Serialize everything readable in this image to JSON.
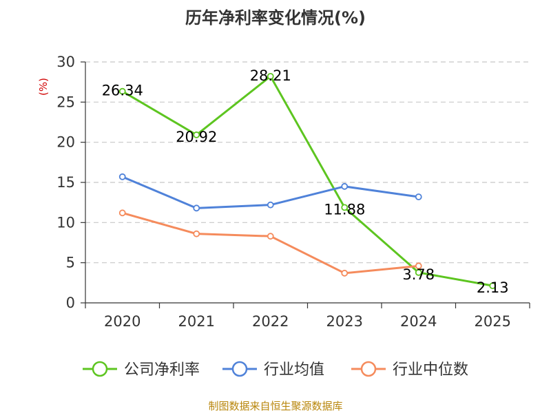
{
  "title": "历年净利率变化情况(%)",
  "footer": "制图数据来自恒生聚源数据库",
  "colors": {
    "company": "#5dc520",
    "industry_avg": "#4f82d9",
    "industry_median": "#f58b5c",
    "unit": "#d00000",
    "footer": "#b8860b",
    "grid": "#c8c8c8",
    "axis": "#333333"
  },
  "chart_data": {
    "type": "line",
    "title": "历年净利率变化情况(%)",
    "ylabel": "(%)",
    "xlabel": "",
    "categories": [
      "2020",
      "2021",
      "2022",
      "2023",
      "2024",
      "2025"
    ],
    "ylim": [
      0,
      30
    ],
    "yticks": [
      0,
      5,
      10,
      15,
      20,
      25,
      30
    ],
    "grid": true,
    "legend_position": "bottom",
    "series": [
      {
        "name": "公司净利率",
        "color": "#5dc520",
        "values": [
          26.34,
          20.92,
          28.21,
          11.88,
          3.78,
          2.13
        ],
        "labels": [
          "26.34",
          "20.92",
          "28.21",
          "11.88",
          "3.78",
          "2.13"
        ]
      },
      {
        "name": "行业均值",
        "color": "#4f82d9",
        "values": [
          15.7,
          11.8,
          12.2,
          14.5,
          13.2,
          null
        ]
      },
      {
        "name": "行业中位数",
        "color": "#f58b5c",
        "values": [
          11.2,
          8.6,
          8.3,
          3.7,
          4.6,
          null
        ]
      }
    ]
  }
}
